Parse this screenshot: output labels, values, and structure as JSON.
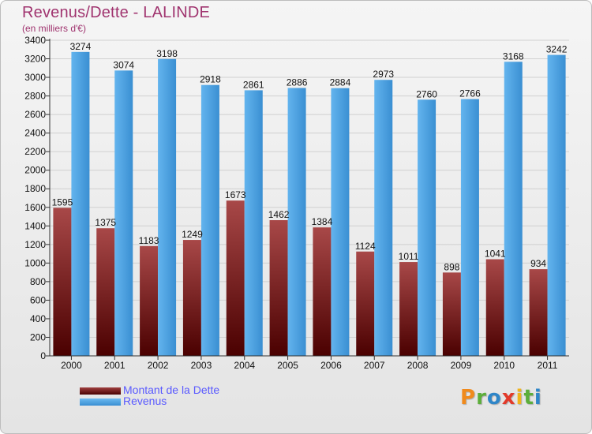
{
  "title": "Revenus/Dette - LALINDE",
  "subtitle": "(en milliers d'€)",
  "logo": "Proxiti",
  "colors": {
    "dette_dark": "#5a0000",
    "dette_light": "#a04040",
    "revenus_dark": "#2f86c8",
    "revenus_light": "#5cb0ea",
    "title": "#a0346f",
    "legend_text": "#5a5aff"
  },
  "chart_data": {
    "type": "bar",
    "title": "Revenus/Dette - LALINDE",
    "categories": [
      "2000",
      "2001",
      "2002",
      "2003",
      "2004",
      "2005",
      "2006",
      "2007",
      "2008",
      "2009",
      "2010",
      "2011"
    ],
    "series": [
      {
        "name": "Montant de la Dette",
        "values": [
          1595,
          1375,
          1183,
          1249,
          1673,
          1462,
          1384,
          1124,
          1011,
          898,
          1041,
          934
        ]
      },
      {
        "name": "Revenus",
        "values": [
          3274,
          3074,
          3198,
          2918,
          2861,
          2886,
          2884,
          2973,
          2760,
          2766,
          3168,
          3242
        ]
      }
    ],
    "data_labels": [
      [
        "1595",
        "1375",
        "1183",
        "1249",
        "1673",
        "1462",
        "1384",
        "1124",
        "1011",
        "898",
        "1041",
        "934"
      ],
      [
        "3274",
        "3074",
        "3198",
        "2918",
        "2861",
        "2886",
        "2884",
        "2973",
        "2760",
        "2766",
        "3168",
        "3242"
      ]
    ],
    "y_ticks": [
      0,
      200,
      400,
      600,
      800,
      1000,
      1200,
      1400,
      1600,
      1800,
      2000,
      2200,
      2400,
      2600,
      2800,
      3000,
      3200,
      3400
    ],
    "ylim": [
      0,
      3400
    ],
    "grid": true,
    "legend_position": "bottom-left"
  }
}
